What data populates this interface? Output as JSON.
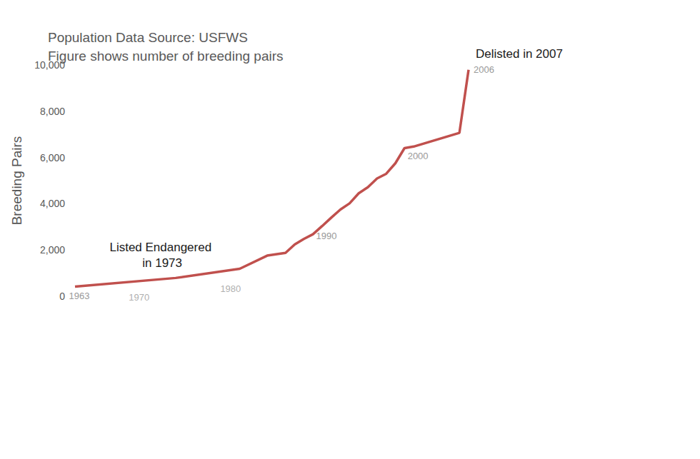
{
  "chart_data": {
    "type": "line",
    "subtitle": [
      "Population Data Source: USFWS",
      "Figure shows number of breeding pairs"
    ],
    "y_label": "Breeding Pairs",
    "x": [
      1963,
      1974,
      1981,
      1984,
      1986,
      1987,
      1988,
      1989,
      1990,
      1991,
      1992,
      1993,
      1994,
      1995,
      1996,
      1997,
      1998,
      1999,
      2000,
      2005,
      2006
    ],
    "values": [
      417,
      791,
      1188,
      1757,
      1875,
      2238,
      2475,
      2680,
      3035,
      3399,
      3749,
      4016,
      4452,
      4712,
      5094,
      5295,
      5748,
      6404,
      6471,
      7066,
      9789
    ],
    "color": "#c0504d",
    "labeled_x": [
      1963,
      1970,
      1980,
      1990,
      2000,
      2006
    ],
    "xlim": [
      1963,
      2006
    ],
    "ylim": [
      0,
      10000
    ],
    "yticks": [
      0,
      {
        "value": 2000,
        "label": "2,000"
      },
      {
        "value": 4000,
        "label": "4,000"
      },
      {
        "value": 6000,
        "label": "6,000"
      },
      {
        "value": 8000,
        "label": "8,000"
      },
      {
        "value": 10000,
        "label": "10,000"
      }
    ],
    "annotations": [
      {
        "text": "Listed Endangered in 1973",
        "x": 1973
      },
      {
        "text": "Delisted in 2007",
        "x": 2006
      }
    ],
    "tick_labels": "y",
    "grid": false
  }
}
